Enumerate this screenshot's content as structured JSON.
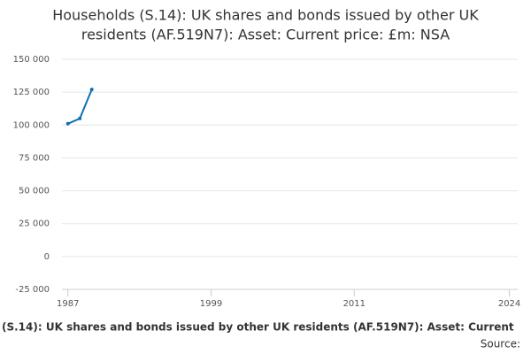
{
  "chart_data": {
    "type": "line",
    "title": [
      "Households (S.14): UK shares and bonds issued by other UK",
      "residents (AF.519N7): Asset: Current price: £m: NSA"
    ],
    "x_label": "(S.14): UK shares and bonds issued by other UK residents (AF.519N7): Asset: Current",
    "source": "Source:",
    "x": [
      1987,
      1988,
      1989
    ],
    "series": [
      {
        "color": "#0e6fb3",
        "values": [
          101000,
          105000,
          127000
        ]
      }
    ],
    "xlim": [
      1986.5,
      2024.7
    ],
    "xticks": [
      1987,
      1999,
      2011,
      2024
    ],
    "ylim": [
      -25000,
      150000
    ],
    "yticks": [
      {
        "value": -25000,
        "label": "-25 000"
      },
      0,
      {
        "value": 25000,
        "label": "25 000"
      },
      {
        "value": 50000,
        "label": "50 000"
      },
      {
        "value": 75000,
        "label": "75 000"
      },
      {
        "value": 100000,
        "label": "100 000"
      },
      {
        "value": 125000,
        "label": "125 000"
      },
      {
        "value": 150000,
        "label": "150 000"
      }
    ],
    "grid": true
  }
}
